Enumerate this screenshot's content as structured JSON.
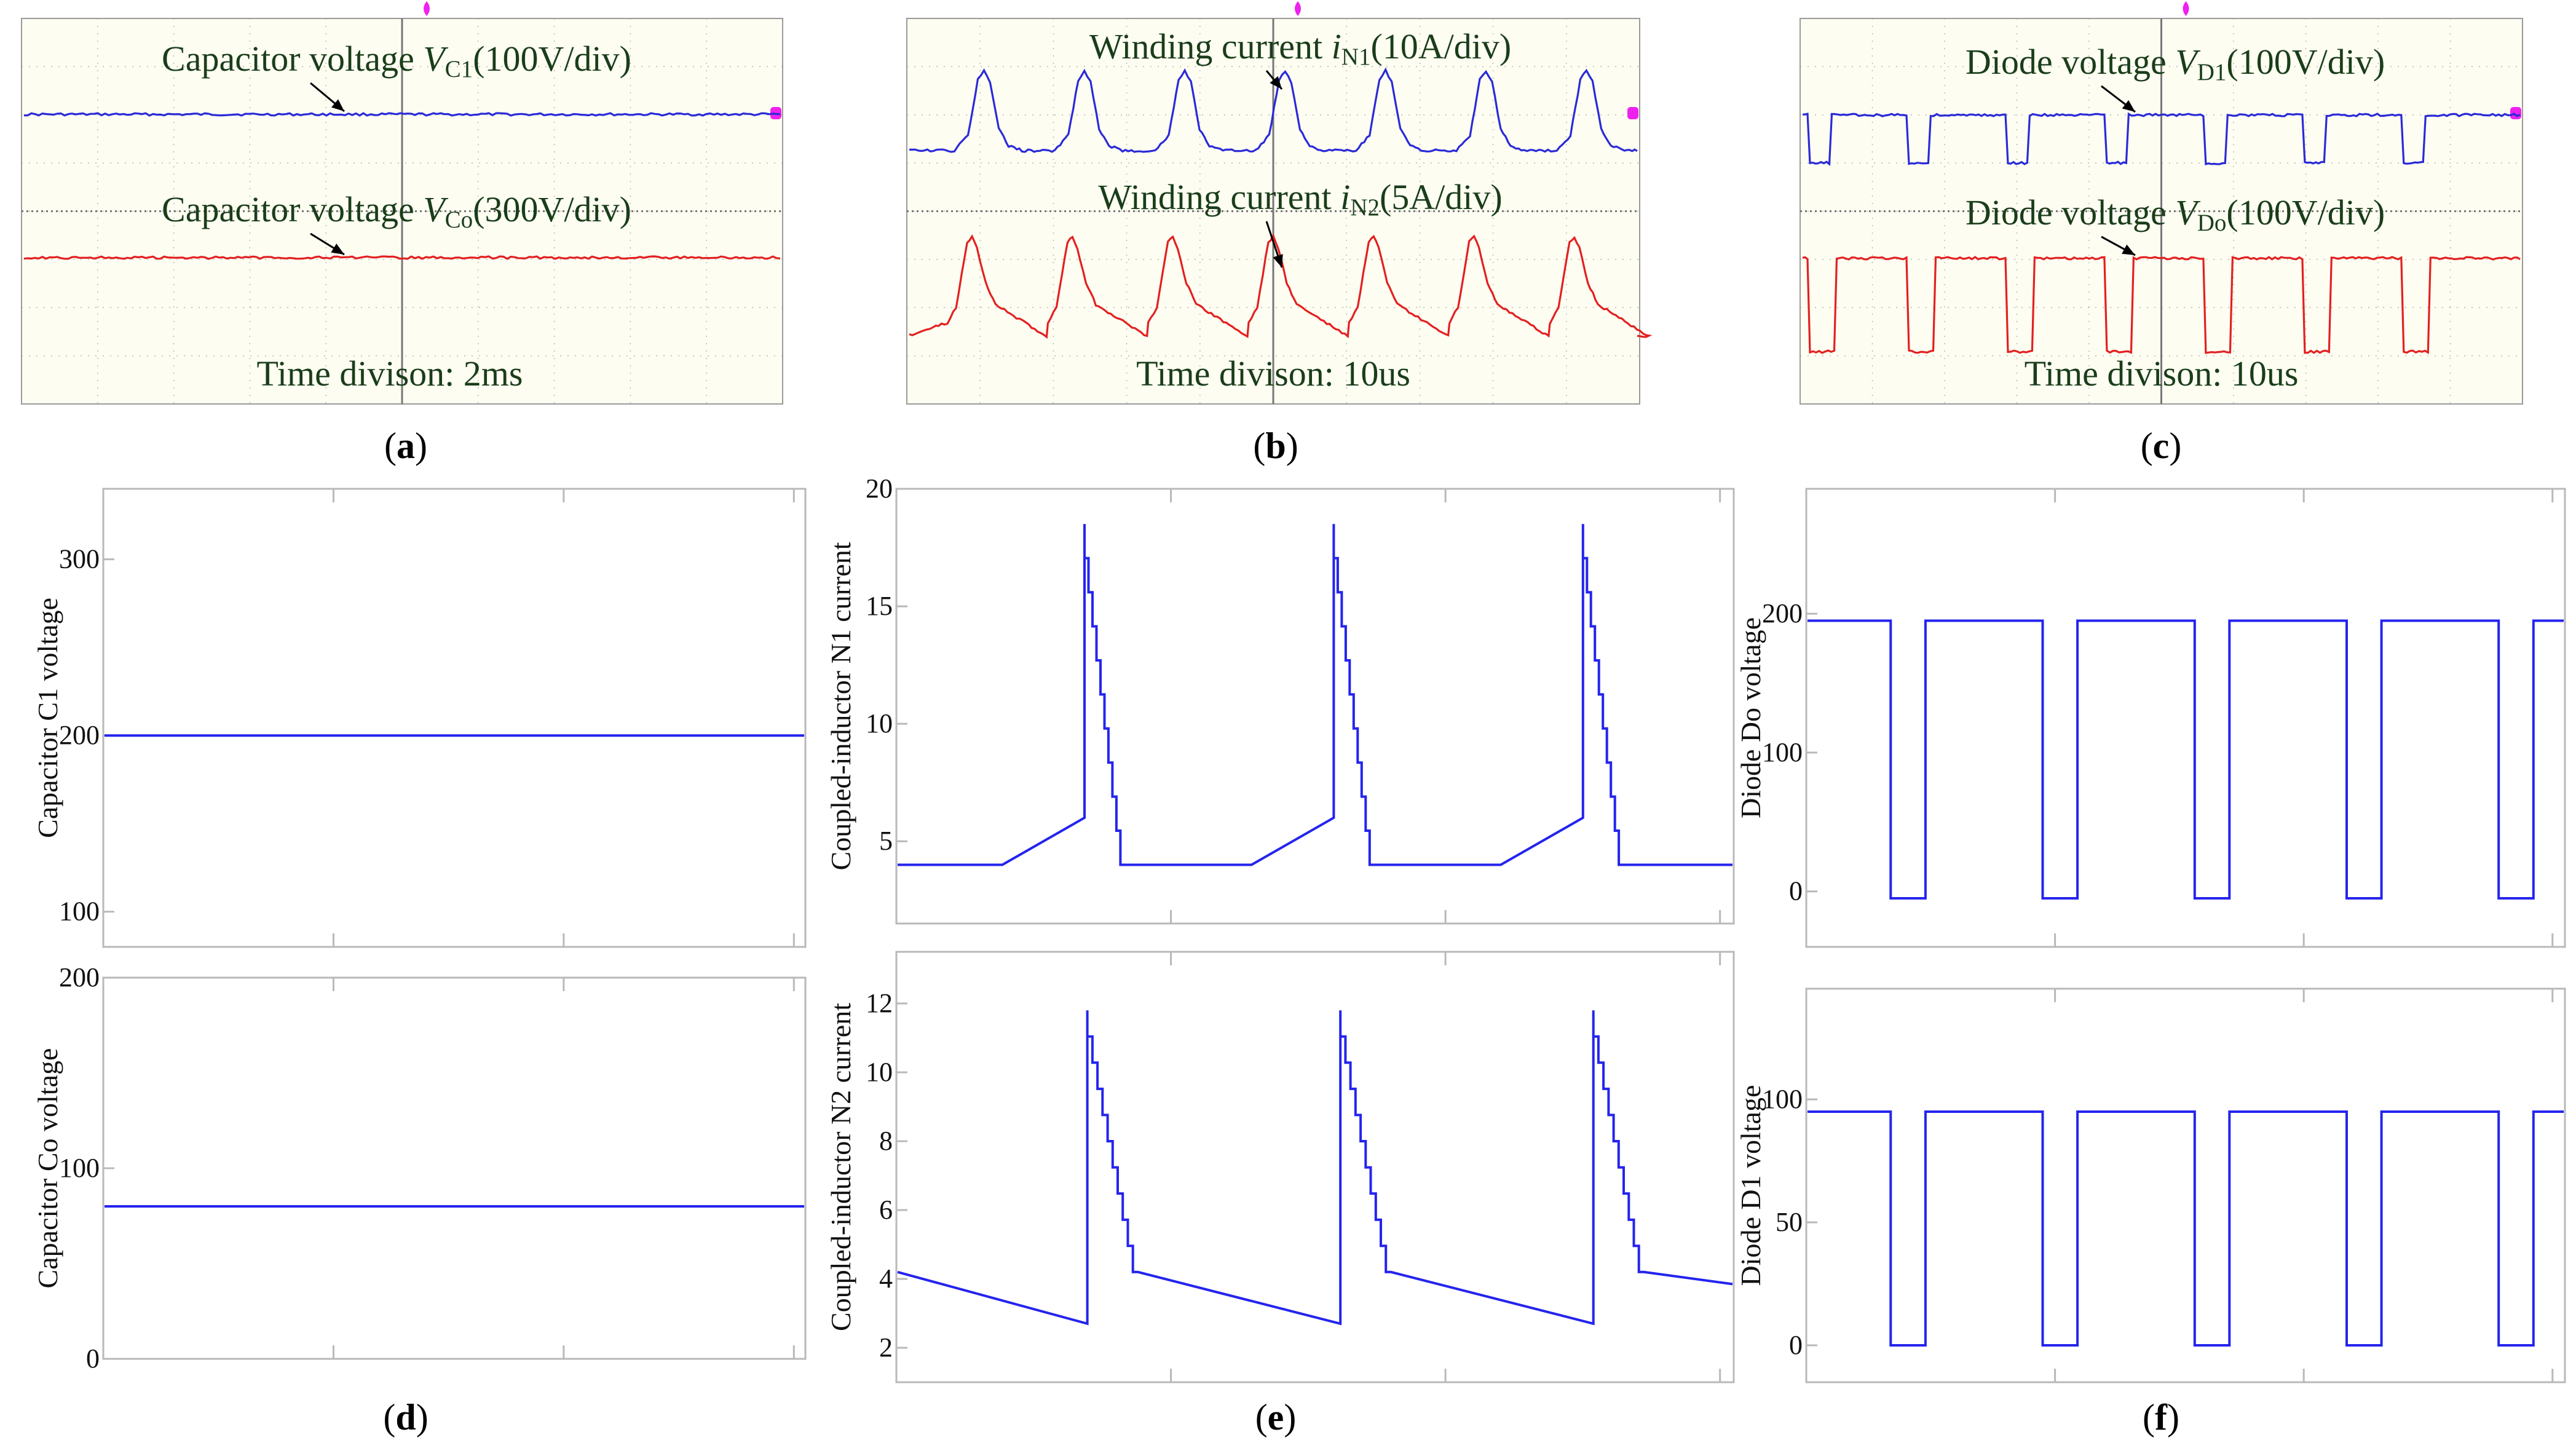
{
  "figure": {
    "colors": {
      "scope_bg": "#fdfdf2",
      "scope_grid": "#9a9a9a",
      "scope_text": "#1a3d1a",
      "scope_blue": "#2a2ad8",
      "scope_red": "#e32020",
      "marker": "#ee22ee",
      "sim_line": "#2424ee",
      "sim_frame": "#b9b9b9",
      "sim_text": "#111111"
    },
    "time_label_prefix": "Time divison: "
  },
  "chart_data": [
    {
      "panel": "a",
      "label": "(a)",
      "type": "line",
      "source": "oscilloscope",
      "time_division": "2ms",
      "series": [
        {
          "name": "Capacitor voltage ",
          "symbol": "V",
          "sub": "C1",
          "scale": "(100V/div)",
          "color": "blue",
          "shape": "flat",
          "level_div": 1.4
        },
        {
          "name": "Capacitor voltage ",
          "symbol": "V",
          "sub": "Co",
          "scale": "(300V/div)",
          "color": "red",
          "shape": "flat",
          "level_div": -0.6
        }
      ]
    },
    {
      "panel": "b",
      "label": "(b)",
      "type": "line",
      "source": "oscilloscope",
      "time_division": "10us",
      "series": [
        {
          "name": "Winding current ",
          "symbol": "i",
          "sub": "N1",
          "scale": "(10A/div)",
          "color": "blue",
          "shape": "pulse",
          "periods": 7,
          "level_div": 1.0
        },
        {
          "name": "Winding current ",
          "symbol": "i",
          "sub": "N2",
          "scale": "(5A/div)",
          "color": "red",
          "shape": "ramp_pulse",
          "periods": 7,
          "level_div": -1.5
        }
      ]
    },
    {
      "panel": "c",
      "label": "(c)",
      "type": "line",
      "source": "oscilloscope",
      "time_division": "10us",
      "series": [
        {
          "name": "Diode voltage ",
          "symbol": "V",
          "sub": "D1",
          "scale": "(100V/div)",
          "color": "blue",
          "shape": "square",
          "periods": 7,
          "level_div": 1.5
        },
        {
          "name": "Diode voltage ",
          "symbol": "V",
          "sub": "Do",
          "scale": "(100V/div)",
          "color": "red",
          "shape": "square",
          "periods": 7,
          "level_div": -0.6
        }
      ]
    },
    {
      "panel": "d",
      "label": "(d)",
      "type": "line",
      "source": "simulation",
      "plots": [
        {
          "ylabel": "Capacitor C1 voltage",
          "ylim": [
            80,
            340
          ],
          "yticks": [
            100,
            200,
            300
          ],
          "series": {
            "kind": "constant",
            "value": 200
          }
        },
        {
          "ylabel": "Capacitor Co voltage",
          "ylim": [
            0,
            200
          ],
          "yticks": [
            0,
            100,
            200
          ],
          "series": {
            "kind": "constant",
            "value": 80
          }
        }
      ]
    },
    {
      "panel": "e",
      "label": "(e)",
      "type": "line",
      "source": "simulation",
      "plots": [
        {
          "ylabel": "Coupled-inductor N1 current",
          "ylim": [
            1.5,
            20
          ],
          "yticks": [
            5,
            10,
            15,
            20
          ],
          "series": {
            "kind": "spike",
            "periods": 3,
            "base": 4,
            "ramp_top": 6,
            "peak": 18.5
          }
        },
        {
          "ylabel": "Coupled-inductor N2 current",
          "ylim": [
            1,
            13.5
          ],
          "yticks": [
            2,
            4,
            6,
            8,
            10,
            12
          ],
          "series": {
            "kind": "sawtooth_spike",
            "periods": 3,
            "high_after": 4.2,
            "low": 2.7,
            "peak": 11.8
          }
        }
      ]
    },
    {
      "panel": "f",
      "label": "(f)",
      "type": "line",
      "source": "simulation",
      "plots": [
        {
          "ylabel": "Diode Do voltage",
          "ylim": [
            -40,
            290
          ],
          "yticks": [
            0,
            100,
            200
          ],
          "series": {
            "kind": "square",
            "periods": 5,
            "high": 195,
            "low": -5
          }
        },
        {
          "ylabel": "Diode D1 voltage",
          "ylim": [
            -15,
            145
          ],
          "yticks": [
            0,
            50,
            100
          ],
          "series": {
            "kind": "square",
            "periods": 5,
            "high": 95,
            "low": 0
          }
        }
      ]
    }
  ]
}
